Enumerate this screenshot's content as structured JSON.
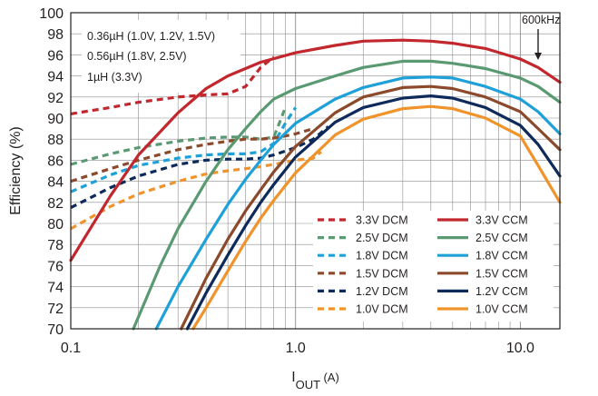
{
  "chart_data": {
    "type": "line",
    "xscale": "log",
    "xlim": [
      0.1,
      15
    ],
    "ylim": [
      70,
      100
    ],
    "grid": true,
    "xlabel_main": "I",
    "xlabel_sub": "OUT",
    "xlabel_unit": " (A)",
    "ylabel": "Efficiency (%)",
    "x_ticks": [
      {
        "value": 0.1,
        "label": "0.1"
      },
      {
        "value": 1,
        "label": "1.0"
      },
      {
        "value": 10,
        "label": "10.0"
      }
    ],
    "y_ticks": [
      {
        "value": 70,
        "label": "70"
      },
      {
        "value": 72,
        "label": "72"
      },
      {
        "value": 74,
        "label": "74"
      },
      {
        "value": 76,
        "label": "76"
      },
      {
        "value": 78,
        "label": "78"
      },
      {
        "value": 80,
        "label": "80"
      },
      {
        "value": 82,
        "label": "82"
      },
      {
        "value": 84,
        "label": "84"
      },
      {
        "value": 86,
        "label": "86"
      },
      {
        "value": 88,
        "label": "88"
      },
      {
        "value": 90,
        "label": "90"
      },
      {
        "value": 92,
        "label": "92"
      },
      {
        "value": 94,
        "label": "94"
      },
      {
        "value": 96,
        "label": "96"
      },
      {
        "value": 98,
        "label": "98"
      },
      {
        "value": 100,
        "label": "100"
      }
    ],
    "inductor_notes": [
      "0.36µH (1.0V, 1.2V, 1.5V)",
      "0.56µH (1.8V, 2.5V)",
      "1µH (3.3V)"
    ],
    "annotation": {
      "text": "600kHz",
      "x": 12
    },
    "legend_position": "bottom-right",
    "series": [
      {
        "name": "3.3V DCM",
        "mode": "DCM",
        "color": "#c1272d",
        "x": [
          0.1,
          0.15,
          0.2,
          0.3,
          0.4,
          0.5,
          0.6,
          0.7,
          0.8
        ],
        "y": [
          90.4,
          91.0,
          91.5,
          92.0,
          92.2,
          92.3,
          93.0,
          94.8,
          95.8
        ]
      },
      {
        "name": "2.5V DCM",
        "mode": "DCM",
        "color": "#5a9a72",
        "x": [
          0.1,
          0.15,
          0.2,
          0.3,
          0.4,
          0.5,
          0.6,
          0.7,
          0.8,
          0.85,
          0.9
        ],
        "y": [
          85.6,
          86.6,
          87.2,
          87.8,
          88.1,
          88.2,
          88.2,
          88.0,
          88.2,
          89.6,
          91.0
        ]
      },
      {
        "name": "1.8V DCM",
        "mode": "DCM",
        "color": "#1ea0d8",
        "x": [
          0.1,
          0.15,
          0.2,
          0.3,
          0.4,
          0.5,
          0.6,
          0.7,
          0.8,
          0.9,
          1.0
        ],
        "y": [
          83.0,
          84.6,
          85.5,
          86.2,
          86.5,
          86.6,
          86.6,
          86.8,
          87.6,
          89.5,
          91.0
        ]
      },
      {
        "name": "1.5V DCM",
        "mode": "DCM",
        "color": "#8b4a2b",
        "x": [
          0.1,
          0.15,
          0.2,
          0.3,
          0.4,
          0.5,
          0.6,
          0.7,
          0.8,
          0.9,
          1.0,
          1.2
        ],
        "y": [
          84.0,
          85.2,
          86.0,
          87.0,
          87.5,
          87.8,
          88.0,
          88.0,
          88.1,
          88.3,
          88.5,
          89.0
        ]
      },
      {
        "name": "1.2V DCM",
        "mode": "DCM",
        "color": "#0e2a5a",
        "x": [
          0.1,
          0.15,
          0.2,
          0.3,
          0.4,
          0.5,
          0.6,
          0.7,
          0.8,
          1.0,
          1.2,
          1.4
        ],
        "y": [
          81.5,
          83.4,
          84.5,
          85.6,
          86.0,
          86.1,
          86.1,
          86.2,
          86.5,
          87.2,
          88.0,
          89.2
        ]
      },
      {
        "name": "1.0V DCM",
        "mode": "DCM",
        "color": "#f0932b",
        "x": [
          0.1,
          0.15,
          0.2,
          0.3,
          0.4,
          0.5,
          0.6,
          0.7,
          0.8,
          1.0,
          1.2,
          1.3
        ],
        "y": [
          79.5,
          81.6,
          82.8,
          84.0,
          84.7,
          85.0,
          85.2,
          85.4,
          85.6,
          86.0,
          86.2,
          86.8
        ]
      },
      {
        "name": "3.3V CCM",
        "mode": "CCM",
        "color": "#c1272d",
        "x": [
          0.1,
          0.15,
          0.2,
          0.3,
          0.4,
          0.5,
          0.7,
          1.0,
          1.5,
          2.0,
          3.0,
          4.0,
          5.0,
          7.0,
          10.0,
          12.0,
          15.0
        ],
        "y": [
          76.5,
          82.6,
          86.5,
          90.5,
          92.8,
          94.0,
          95.3,
          96.2,
          96.9,
          97.3,
          97.4,
          97.3,
          97.1,
          96.6,
          95.6,
          94.8,
          93.4
        ]
      },
      {
        "name": "2.5V CCM",
        "mode": "CCM",
        "color": "#5a9a72",
        "x": [
          0.19,
          0.25,
          0.3,
          0.4,
          0.5,
          0.6,
          0.7,
          0.8,
          1.0,
          1.5,
          2.0,
          3.0,
          4.0,
          5.0,
          7.0,
          10.0,
          12.0,
          15.0
        ],
        "y": [
          70.0,
          76.0,
          79.5,
          84.0,
          87.0,
          89.0,
          90.6,
          91.8,
          92.8,
          94.0,
          94.8,
          95.4,
          95.4,
          95.2,
          94.7,
          93.8,
          93.0,
          91.5
        ]
      },
      {
        "name": "1.8V CCM",
        "mode": "CCM",
        "color": "#1ea0d8",
        "x": [
          0.24,
          0.3,
          0.4,
          0.5,
          0.6,
          0.7,
          0.8,
          1.0,
          1.5,
          2.0,
          3.0,
          4.0,
          5.0,
          7.0,
          10.0,
          12.0,
          15.0
        ],
        "y": [
          70.0,
          74.0,
          78.5,
          81.8,
          84.2,
          86.0,
          87.5,
          89.5,
          91.8,
          92.9,
          93.8,
          93.9,
          93.8,
          93.0,
          91.8,
          90.6,
          88.5
        ]
      },
      {
        "name": "1.5V CCM",
        "mode": "CCM",
        "color": "#8b4a2b",
        "x": [
          0.31,
          0.4,
          0.5,
          0.6,
          0.7,
          0.8,
          1.0,
          1.5,
          2.0,
          3.0,
          4.0,
          5.0,
          7.0,
          10.0,
          12.0,
          15.0
        ],
        "y": [
          70.0,
          74.8,
          78.5,
          81.2,
          83.2,
          84.9,
          87.3,
          90.5,
          92.0,
          92.9,
          93.0,
          92.8,
          92.0,
          90.6,
          89.0,
          87.0
        ]
      },
      {
        "name": "1.2V CCM",
        "mode": "CCM",
        "color": "#0e2a5a",
        "x": [
          0.33,
          0.4,
          0.5,
          0.6,
          0.7,
          0.8,
          1.0,
          1.5,
          2.0,
          3.0,
          4.0,
          5.0,
          7.0,
          10.0,
          12.0,
          15.0
        ],
        "y": [
          70.0,
          73.4,
          77.0,
          79.8,
          82.0,
          83.7,
          86.3,
          89.6,
          91.0,
          91.9,
          92.1,
          91.9,
          91.0,
          89.3,
          87.5,
          84.5
        ]
      },
      {
        "name": "1.0V CCM",
        "mode": "CCM",
        "color": "#f0932b",
        "x": [
          0.35,
          0.4,
          0.5,
          0.6,
          0.7,
          0.8,
          1.0,
          1.5,
          2.0,
          3.0,
          4.0,
          5.0,
          7.0,
          10.0,
          12.0,
          15.0
        ],
        "y": [
          70.0,
          72.0,
          75.5,
          78.3,
          80.5,
          82.2,
          84.8,
          88.4,
          89.9,
          90.9,
          91.1,
          90.9,
          90.0,
          88.3,
          85.5,
          82.0
        ]
      }
    ]
  }
}
